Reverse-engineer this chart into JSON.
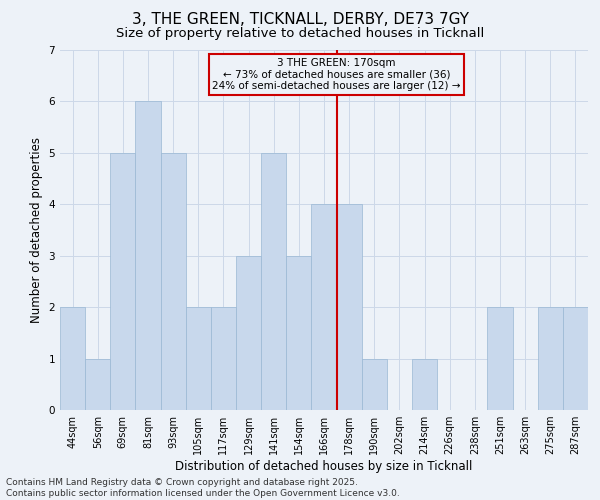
{
  "title_line1": "3, THE GREEN, TICKNALL, DERBY, DE73 7GY",
  "title_line2": "Size of property relative to detached houses in Ticknall",
  "xlabel": "Distribution of detached houses by size in Ticknall",
  "ylabel": "Number of detached properties",
  "categories": [
    "44sqm",
    "56sqm",
    "69sqm",
    "81sqm",
    "93sqm",
    "105sqm",
    "117sqm",
    "129sqm",
    "141sqm",
    "154sqm",
    "166sqm",
    "178sqm",
    "190sqm",
    "202sqm",
    "214sqm",
    "226sqm",
    "238sqm",
    "251sqm",
    "263sqm",
    "275sqm",
    "287sqm"
  ],
  "values": [
    2,
    1,
    5,
    6,
    5,
    2,
    2,
    3,
    5,
    3,
    4,
    4,
    1,
    0,
    1,
    0,
    0,
    2,
    0,
    2,
    2
  ],
  "bar_color": "#c8d8ec",
  "bar_edge_color": "#9ab8d4",
  "grid_color": "#ccd8e8",
  "background_color": "#edf2f8",
  "annotation_box_text": "3 THE GREEN: 170sqm\n← 73% of detached houses are smaller (36)\n24% of semi-detached houses are larger (12) →",
  "annotation_box_color": "#cc0000",
  "vline_x_index": 10.5,
  "vline_color": "#cc0000",
  "ylim": [
    0,
    7
  ],
  "yticks": [
    0,
    1,
    2,
    3,
    4,
    5,
    6,
    7
  ],
  "footer_line1": "Contains HM Land Registry data © Crown copyright and database right 2025.",
  "footer_line2": "Contains public sector information licensed under the Open Government Licence v3.0.",
  "title_fontsize": 11,
  "subtitle_fontsize": 9.5,
  "tick_fontsize": 7,
  "axis_label_fontsize": 8.5,
  "footer_fontsize": 6.5,
  "ann_fontsize": 7.5
}
